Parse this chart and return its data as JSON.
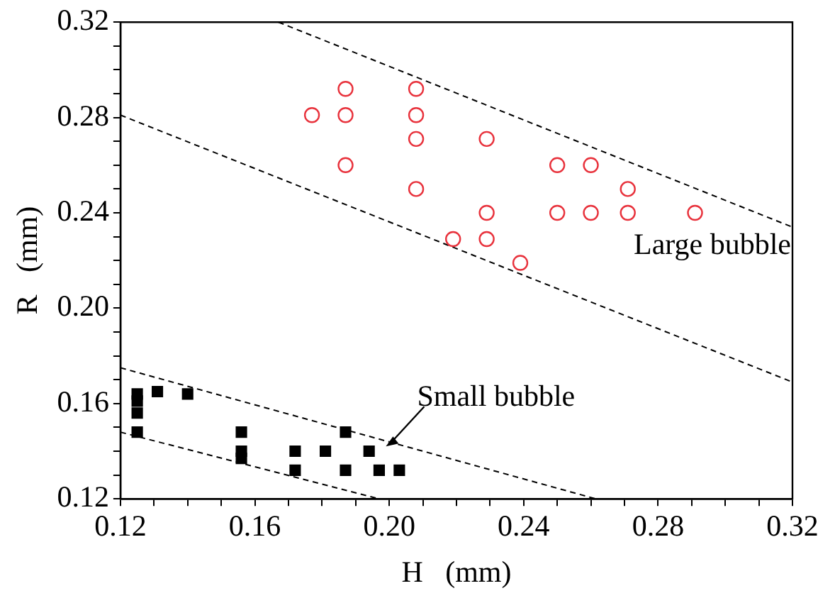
{
  "chart_data": {
    "type": "scatter",
    "xlabel": "H   (mm)",
    "ylabel": "R   (mm)",
    "xlim": [
      0.12,
      0.32
    ],
    "ylim": [
      0.12,
      0.32
    ],
    "xticks": [
      0.12,
      {
        "value": 0.13,
        "label": null
      },
      {
        "value": 0.14,
        "label": null
      },
      {
        "value": 0.15,
        "label": null
      },
      0.16,
      {
        "value": 0.17,
        "label": null
      },
      {
        "value": 0.18,
        "label": null
      },
      {
        "value": 0.19,
        "label": null
      },
      {
        "value": 0.2,
        "label": "0.20"
      },
      {
        "value": 0.21,
        "label": null
      },
      {
        "value": 0.22,
        "label": null
      },
      {
        "value": 0.23,
        "label": null
      },
      0.24,
      {
        "value": 0.25,
        "label": null
      },
      {
        "value": 0.26,
        "label": null
      },
      {
        "value": 0.27,
        "label": null
      },
      0.28,
      {
        "value": 0.29,
        "label": null
      },
      {
        "value": 0.3,
        "label": null
      },
      {
        "value": 0.31,
        "label": null
      },
      0.32
    ],
    "yticks": [
      0.12,
      {
        "value": 0.13,
        "label": null
      },
      {
        "value": 0.14,
        "label": null
      },
      {
        "value": 0.15,
        "label": null
      },
      0.16,
      {
        "value": 0.17,
        "label": null
      },
      {
        "value": 0.18,
        "label": null
      },
      {
        "value": 0.19,
        "label": null
      },
      {
        "value": 0.2,
        "label": "0.20"
      },
      {
        "value": 0.21,
        "label": null
      },
      {
        "value": 0.22,
        "label": null
      },
      {
        "value": 0.23,
        "label": null
      },
      0.24,
      {
        "value": 0.25,
        "label": null
      },
      {
        "value": 0.26,
        "label": null
      },
      {
        "value": 0.27,
        "label": null
      },
      0.28,
      {
        "value": 0.29,
        "label": null
      },
      {
        "value": 0.3,
        "label": null
      },
      {
        "value": 0.31,
        "label": null
      },
      0.32
    ],
    "grid": false,
    "legend": false,
    "series": [
      {
        "type": "scatter",
        "marker": "circle",
        "color": "#e8323c",
        "x": [
          0.177,
          0.187,
          0.187,
          0.187,
          0.208,
          0.208,
          0.208,
          0.208,
          0.219,
          0.229,
          0.229,
          0.229,
          0.239,
          0.25,
          0.25,
          0.26,
          0.26,
          0.271,
          0.271,
          0.291
        ],
        "values": [
          0.281,
          0.292,
          0.281,
          0.26,
          0.292,
          0.281,
          0.271,
          0.25,
          0.229,
          0.271,
          0.24,
          0.229,
          0.219,
          0.26,
          0.24,
          0.26,
          0.24,
          0.25,
          0.24,
          0.24
        ]
      },
      {
        "type": "scatter",
        "marker": "square",
        "color": "#000000",
        "x": [
          0.125,
          0.125,
          0.125,
          0.125,
          0.131,
          0.14,
          0.156,
          0.156,
          0.156,
          0.172,
          0.172,
          0.181,
          0.187,
          0.187,
          0.194,
          0.197,
          0.203
        ],
        "values": [
          0.164,
          0.161,
          0.156,
          0.148,
          0.165,
          0.164,
          0.148,
          0.14,
          0.137,
          0.14,
          0.132,
          0.14,
          0.148,
          0.132,
          0.14,
          0.132,
          0.132
        ]
      },
      {
        "type": "line",
        "marker": "none",
        "line_style": "dashed",
        "color": "#000000",
        "x": [
          0.167,
          0.32
        ],
        "values": [
          0.32,
          0.234
        ]
      },
      {
        "type": "line",
        "marker": "none",
        "line_style": "dashed",
        "color": "#000000",
        "x": [
          0.12,
          0.32
        ],
        "values": [
          0.281,
          0.169
        ]
      },
      {
        "type": "line",
        "marker": "none",
        "line_style": "dashed",
        "color": "#000000",
        "x": [
          0.12,
          0.2615
        ],
        "values": [
          0.175,
          0.12
        ]
      },
      {
        "type": "line",
        "marker": "none",
        "line_style": "dashed",
        "color": "#000000",
        "x": [
          0.12,
          0.197
        ],
        "values": [
          0.148,
          0.12
        ]
      }
    ],
    "annotations": [
      "Large bubble",
      {
        "text": "Small bubble",
        "x": 0.199,
        "y": 0.142
      }
    ]
  }
}
